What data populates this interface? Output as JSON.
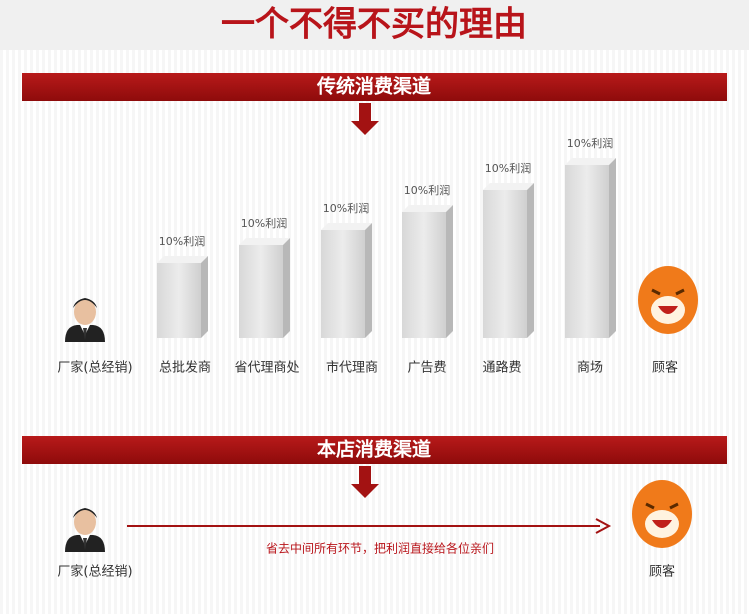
{
  "title": "一个不得不买的理由",
  "traditional": {
    "heading": "传统消费渠道",
    "start": "厂家(总经销)",
    "steps": [
      {
        "name": "总批发商",
        "note": "10%利润"
      },
      {
        "name": "省代理商处",
        "note": "10%利润"
      },
      {
        "name": "市代理商",
        "note": "10%利润"
      },
      {
        "name": "广告费",
        "note": "10%利润"
      },
      {
        "name": "通路费",
        "note": "10%利润"
      },
      {
        "name": "商场",
        "note": "10%利润"
      }
    ],
    "end": "顾客"
  },
  "store": {
    "heading": "本店消费渠道",
    "start": "厂家(总经销)",
    "message": "省去中间所有环节，把利润直接给各位亲们",
    "end": "顾客"
  }
}
